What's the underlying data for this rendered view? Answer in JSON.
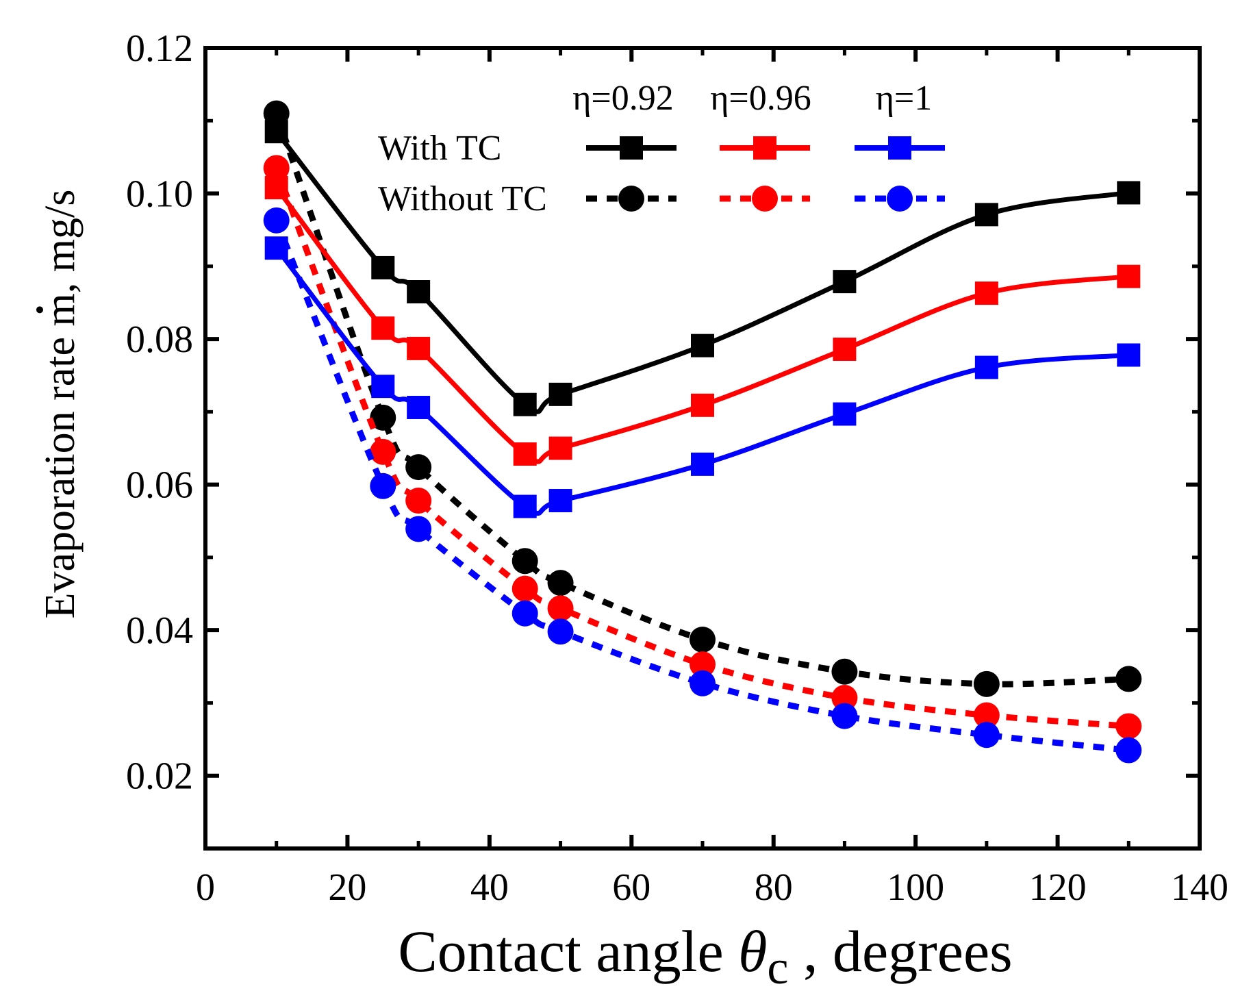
{
  "chart_data": {
    "type": "line",
    "xlabel": {
      "main": "Contact angle ",
      "symbol": "θ",
      "subscript": "c",
      "suffix": " , degrees"
    },
    "ylabel": {
      "before": "Evaporation rate ",
      "symbol": "m",
      "after": ", mg/s"
    },
    "xlim": [
      0,
      140
    ],
    "ylim": [
      0.01,
      0.12
    ],
    "xticks": [
      0,
      20,
      40,
      60,
      80,
      100,
      120,
      140
    ],
    "xtick_labels": [
      "0",
      "20",
      "40",
      "60",
      "80",
      "100",
      "120",
      "140"
    ],
    "yticks": [
      0.02,
      0.04,
      0.06,
      0.08,
      0.1,
      0.12
    ],
    "ytick_labels": [
      "0.02",
      "0.04",
      "0.06",
      "0.08",
      "0.10",
      "0.12"
    ],
    "grid": false,
    "legend": {
      "placement": "top-center",
      "column_headers": [
        "η=0.92",
        "η=0.96",
        "η=1"
      ],
      "row_labels": [
        "With TC",
        "Without TC"
      ]
    },
    "x": [
      10,
      25,
      30,
      45,
      50,
      70,
      90,
      110,
      130
    ],
    "series": [
      {
        "name": "With TC η=0.92",
        "group": "with",
        "color": "#000000",
        "marker": "square",
        "style": "solid",
        "values": [
          0.1085,
          0.0898,
          0.0865,
          0.071,
          0.0724,
          0.0791,
          0.0879,
          0.0971,
          0.1001
        ]
      },
      {
        "name": "With TC η=0.96",
        "group": "with",
        "color": "#ff0000",
        "marker": "square",
        "style": "solid",
        "values": [
          0.1008,
          0.0815,
          0.0787,
          0.0642,
          0.065,
          0.0709,
          0.0786,
          0.0863,
          0.0886
        ]
      },
      {
        "name": "With TC η=1",
        "group": "with",
        "color": "#0000ff",
        "marker": "square",
        "style": "solid",
        "values": [
          0.0925,
          0.0735,
          0.0706,
          0.057,
          0.0578,
          0.0628,
          0.0697,
          0.0761,
          0.0778
        ]
      },
      {
        "name": "Without TC η=0.92",
        "group": "without",
        "color": "#000000",
        "marker": "circle",
        "style": "dotted",
        "values": [
          0.111,
          0.0692,
          0.0624,
          0.0495,
          0.0465,
          0.0387,
          0.0343,
          0.0326,
          0.0333
        ]
      },
      {
        "name": "Without TC η=0.96",
        "group": "without",
        "color": "#ff0000",
        "marker": "circle",
        "style": "dotted",
        "values": [
          0.1035,
          0.0645,
          0.0578,
          0.0457,
          0.043,
          0.0353,
          0.0307,
          0.0283,
          0.0268
        ]
      },
      {
        "name": "Without TC η=1",
        "group": "without",
        "color": "#0000ff",
        "marker": "circle",
        "style": "dotted",
        "values": [
          0.0963,
          0.0598,
          0.0539,
          0.0423,
          0.0398,
          0.0327,
          0.0282,
          0.0256,
          0.0235
        ]
      }
    ]
  }
}
